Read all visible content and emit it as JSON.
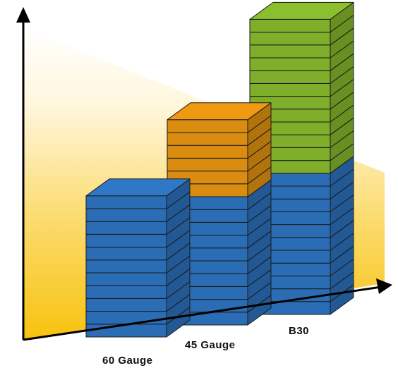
{
  "chart_data": {
    "type": "bar",
    "stacked": true,
    "three_d": true,
    "categories": [
      "60 Gauge",
      "45 Gauge",
      "B30"
    ],
    "series": [
      {
        "values": [
          11,
          10,
          11
        ],
        "color": "#2a6db5"
      },
      {
        "values": [
          0,
          6,
          0
        ],
        "color": "#d98c0f"
      },
      {
        "values": [
          0,
          0,
          12
        ],
        "color": "#7fae2a"
      }
    ],
    "title": "",
    "xlabel": "",
    "ylabel": "",
    "grid": false,
    "legend": "none",
    "background_gradient": [
      "#ffffff",
      "#f7c51e"
    ]
  },
  "labels": {
    "cat0": "60 Gauge",
    "cat1": "45 Gauge",
    "cat2": "B30"
  }
}
